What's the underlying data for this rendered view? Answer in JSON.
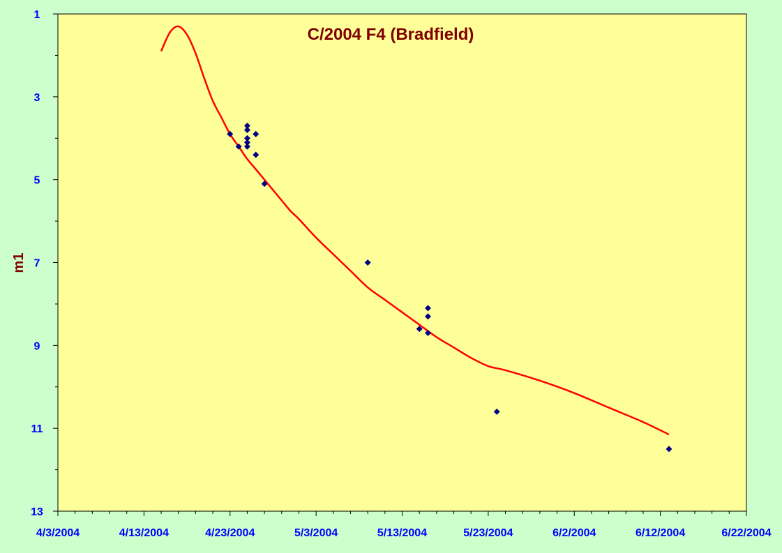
{
  "chart_data": {
    "type": "scatter",
    "title": "C/2004 F4 (Bradfield)",
    "xlabel": "",
    "ylabel": "m1",
    "x_axis": {
      "type": "date",
      "min": "2004-04-03",
      "max": "2004-06-22",
      "tick_labels": [
        "4/3/2004",
        "4/13/2004",
        "4/23/2004",
        "5/3/2004",
        "5/13/2004",
        "5/23/2004",
        "6/2/2004",
        "6/12/2004",
        "6/22/2004"
      ]
    },
    "y_axis": {
      "min": 1,
      "max": 13,
      "reversed": true,
      "tick_labels": [
        "1",
        "3",
        "5",
        "7",
        "9",
        "11",
        "13"
      ]
    },
    "grid": false,
    "legend": "none",
    "series": [
      {
        "kind": "scatter",
        "marker": "diamond",
        "points": [
          {
            "x": "2004-04-23",
            "y": 3.9
          },
          {
            "x": "2004-04-24",
            "y": 4.2
          },
          {
            "x": "2004-04-25",
            "y": 3.7
          },
          {
            "x": "2004-04-25",
            "y": 3.8
          },
          {
            "x": "2004-04-25",
            "y": 4.0
          },
          {
            "x": "2004-04-25",
            "y": 4.1
          },
          {
            "x": "2004-04-25",
            "y": 4.2
          },
          {
            "x": "2004-04-26",
            "y": 3.9
          },
          {
            "x": "2004-04-26",
            "y": 4.4
          },
          {
            "x": "2004-04-27",
            "y": 5.1
          },
          {
            "x": "2004-05-09",
            "y": 7.0
          },
          {
            "x": "2004-05-15",
            "y": 8.6
          },
          {
            "x": "2004-05-16",
            "y": 8.1
          },
          {
            "x": "2004-05-16",
            "y": 8.3
          },
          {
            "x": "2004-05-16",
            "y": 8.7
          },
          {
            "x": "2004-05-24",
            "y": 10.6
          },
          {
            "x": "2004-06-13",
            "y": 11.5
          }
        ]
      },
      {
        "kind": "line",
        "points": [
          {
            "x": "2004-04-15",
            "y": 1.9
          },
          {
            "x": "2004-04-16",
            "y": 1.45
          },
          {
            "x": "2004-04-17",
            "y": 1.3
          },
          {
            "x": "2004-04-18",
            "y": 1.5
          },
          {
            "x": "2004-04-19",
            "y": 1.95
          },
          {
            "x": "2004-04-20",
            "y": 2.55
          },
          {
            "x": "2004-04-21",
            "y": 3.1
          },
          {
            "x": "2004-04-22",
            "y": 3.5
          },
          {
            "x": "2004-04-23",
            "y": 3.9
          },
          {
            "x": "2004-04-24",
            "y": 4.2
          },
          {
            "x": "2004-04-25",
            "y": 4.5
          },
          {
            "x": "2004-04-26",
            "y": 4.75
          },
          {
            "x": "2004-04-27",
            "y": 5.0
          },
          {
            "x": "2004-04-28",
            "y": 5.25
          },
          {
            "x": "2004-04-29",
            "y": 5.5
          },
          {
            "x": "2004-04-30",
            "y": 5.75
          },
          {
            "x": "2004-05-01",
            "y": 5.95
          },
          {
            "x": "2004-05-03",
            "y": 6.4
          },
          {
            "x": "2004-05-05",
            "y": 6.8
          },
          {
            "x": "2004-05-07",
            "y": 7.2
          },
          {
            "x": "2004-05-09",
            "y": 7.6
          },
          {
            "x": "2004-05-11",
            "y": 7.9
          },
          {
            "x": "2004-05-13",
            "y": 8.2
          },
          {
            "x": "2004-05-15",
            "y": 8.5
          },
          {
            "x": "2004-05-17",
            "y": 8.8
          },
          {
            "x": "2004-05-19",
            "y": 9.05
          },
          {
            "x": "2004-05-21",
            "y": 9.3
          },
          {
            "x": "2004-05-23",
            "y": 9.5
          },
          {
            "x": "2004-05-25",
            "y": 9.6
          },
          {
            "x": "2004-05-29",
            "y": 9.85
          },
          {
            "x": "2004-06-02",
            "y": 10.15
          },
          {
            "x": "2004-06-06",
            "y": 10.5
          },
          {
            "x": "2004-06-10",
            "y": 10.85
          },
          {
            "x": "2004-06-13",
            "y": 11.15
          }
        ]
      }
    ],
    "colors": {
      "page_background": "#ccffcc",
      "plot_background": "#ffff99",
      "curve": "#ff0000",
      "points": "#000080",
      "tick_labels": "#0000ff",
      "title": "#800000",
      "axis_title": "#800000"
    }
  }
}
